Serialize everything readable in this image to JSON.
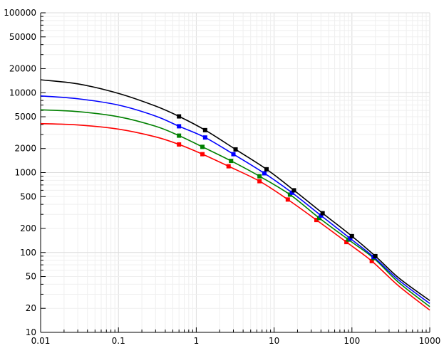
{
  "chart_data": {
    "type": "line",
    "title": "",
    "xlabel": "",
    "ylabel": "",
    "xscale": "log",
    "yscale": "log",
    "xlim": [
      0.01,
      1000
    ],
    "ylim": [
      10,
      100000
    ],
    "grid": true,
    "legend": "none",
    "x_ticks": [
      "0.01",
      "0.1",
      "1",
      "10",
      "100",
      "1000"
    ],
    "x_tick_values": [
      0.01,
      0.1,
      1,
      10,
      100,
      1000
    ],
    "y_ticks": [
      "10",
      "20",
      "50",
      "100",
      "200",
      "500",
      "1000",
      "2000",
      "5000",
      "10000",
      "20000",
      "50000",
      "100000"
    ],
    "y_tick_values": [
      10,
      20,
      50,
      100,
      200,
      500,
      1000,
      2000,
      5000,
      10000,
      20000,
      50000,
      100000
    ],
    "series": [
      {
        "color": "#000000",
        "curve": [
          [
            0.01,
            14500
          ],
          [
            0.03,
            12900
          ],
          [
            0.1,
            9800
          ],
          [
            0.3,
            6800
          ],
          [
            0.6,
            5050
          ],
          [
            1.3,
            3400
          ],
          [
            3.2,
            1950
          ],
          [
            8,
            1100
          ],
          [
            18,
            600
          ],
          [
            42,
            310
          ],
          [
            100,
            160
          ],
          [
            200,
            90
          ],
          [
            400,
            48
          ],
          [
            1000,
            25
          ]
        ],
        "markers": [
          [
            0.6,
            5050
          ],
          [
            1.3,
            3400
          ],
          [
            3.2,
            1950
          ],
          [
            8,
            1100
          ],
          [
            18,
            600
          ],
          [
            42,
            310
          ],
          [
            100,
            160
          ],
          [
            200,
            90
          ]
        ]
      },
      {
        "color": "#0000ff",
        "curve": [
          [
            0.01,
            9100
          ],
          [
            0.03,
            8400
          ],
          [
            0.1,
            7000
          ],
          [
            0.3,
            5100
          ],
          [
            0.6,
            3800
          ],
          [
            1.3,
            2750
          ],
          [
            3.0,
            1700
          ],
          [
            7.5,
            980
          ],
          [
            17,
            560
          ],
          [
            40,
            290
          ],
          [
            95,
            150
          ],
          [
            190,
            88
          ],
          [
            400,
            45
          ],
          [
            1000,
            23
          ]
        ],
        "markers": [
          [
            0.6,
            3800
          ],
          [
            1.3,
            2750
          ],
          [
            3.0,
            1700
          ],
          [
            7.5,
            980
          ],
          [
            17,
            560
          ],
          [
            40,
            290
          ],
          [
            95,
            150
          ],
          [
            190,
            88
          ]
        ]
      },
      {
        "color": "#008000",
        "curve": [
          [
            0.01,
            6100
          ],
          [
            0.03,
            5800
          ],
          [
            0.1,
            5000
          ],
          [
            0.3,
            3800
          ],
          [
            0.6,
            2900
          ],
          [
            1.2,
            2100
          ],
          [
            2.8,
            1400
          ],
          [
            6.5,
            900
          ],
          [
            16,
            530
          ],
          [
            38,
            270
          ],
          [
            90,
            145
          ],
          [
            190,
            85
          ],
          [
            400,
            42
          ],
          [
            1000,
            21
          ]
        ],
        "markers": [
          [
            0.6,
            2900
          ],
          [
            1.2,
            2100
          ],
          [
            2.8,
            1400
          ],
          [
            6.5,
            900
          ],
          [
            16,
            530
          ],
          [
            38,
            270
          ],
          [
            90,
            145
          ],
          [
            190,
            85
          ]
        ]
      },
      {
        "color": "#ff0000",
        "curve": [
          [
            0.01,
            4100
          ],
          [
            0.03,
            3950
          ],
          [
            0.1,
            3500
          ],
          [
            0.3,
            2800
          ],
          [
            0.6,
            2250
          ],
          [
            1.2,
            1700
          ],
          [
            2.6,
            1200
          ],
          [
            6.5,
            780
          ],
          [
            15,
            460
          ],
          [
            35,
            255
          ],
          [
            85,
            135
          ],
          [
            180,
            78
          ],
          [
            400,
            38
          ],
          [
            1000,
            19
          ]
        ],
        "markers": [
          [
            0.6,
            2250
          ],
          [
            1.2,
            1700
          ],
          [
            2.6,
            1200
          ],
          [
            6.5,
            780
          ],
          [
            15,
            460
          ],
          [
            35,
            255
          ],
          [
            85,
            135
          ],
          [
            180,
            78
          ]
        ]
      }
    ]
  }
}
